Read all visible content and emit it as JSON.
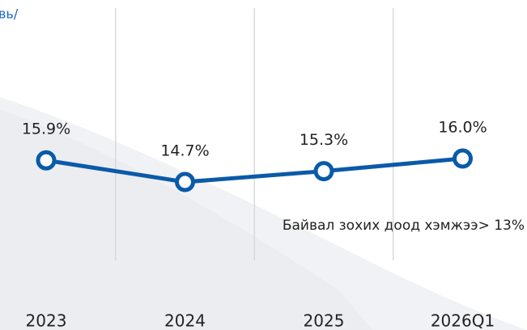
{
  "chart_data": {
    "type": "line",
    "title": "вь/",
    "categories": [
      "2023",
      "2024",
      "2025",
      "2026Q1"
    ],
    "series": [
      {
        "name": null,
        "color": "#0a5aa8",
        "values": [
          15.9,
          14.7,
          15.3,
          16.0
        ],
        "value_labels": [
          "15.9%",
          "14.7%",
          "15.3%",
          "16.0%"
        ]
      }
    ],
    "annotation": "Байвал зохих доод хэмжээ> 13%"
  }
}
